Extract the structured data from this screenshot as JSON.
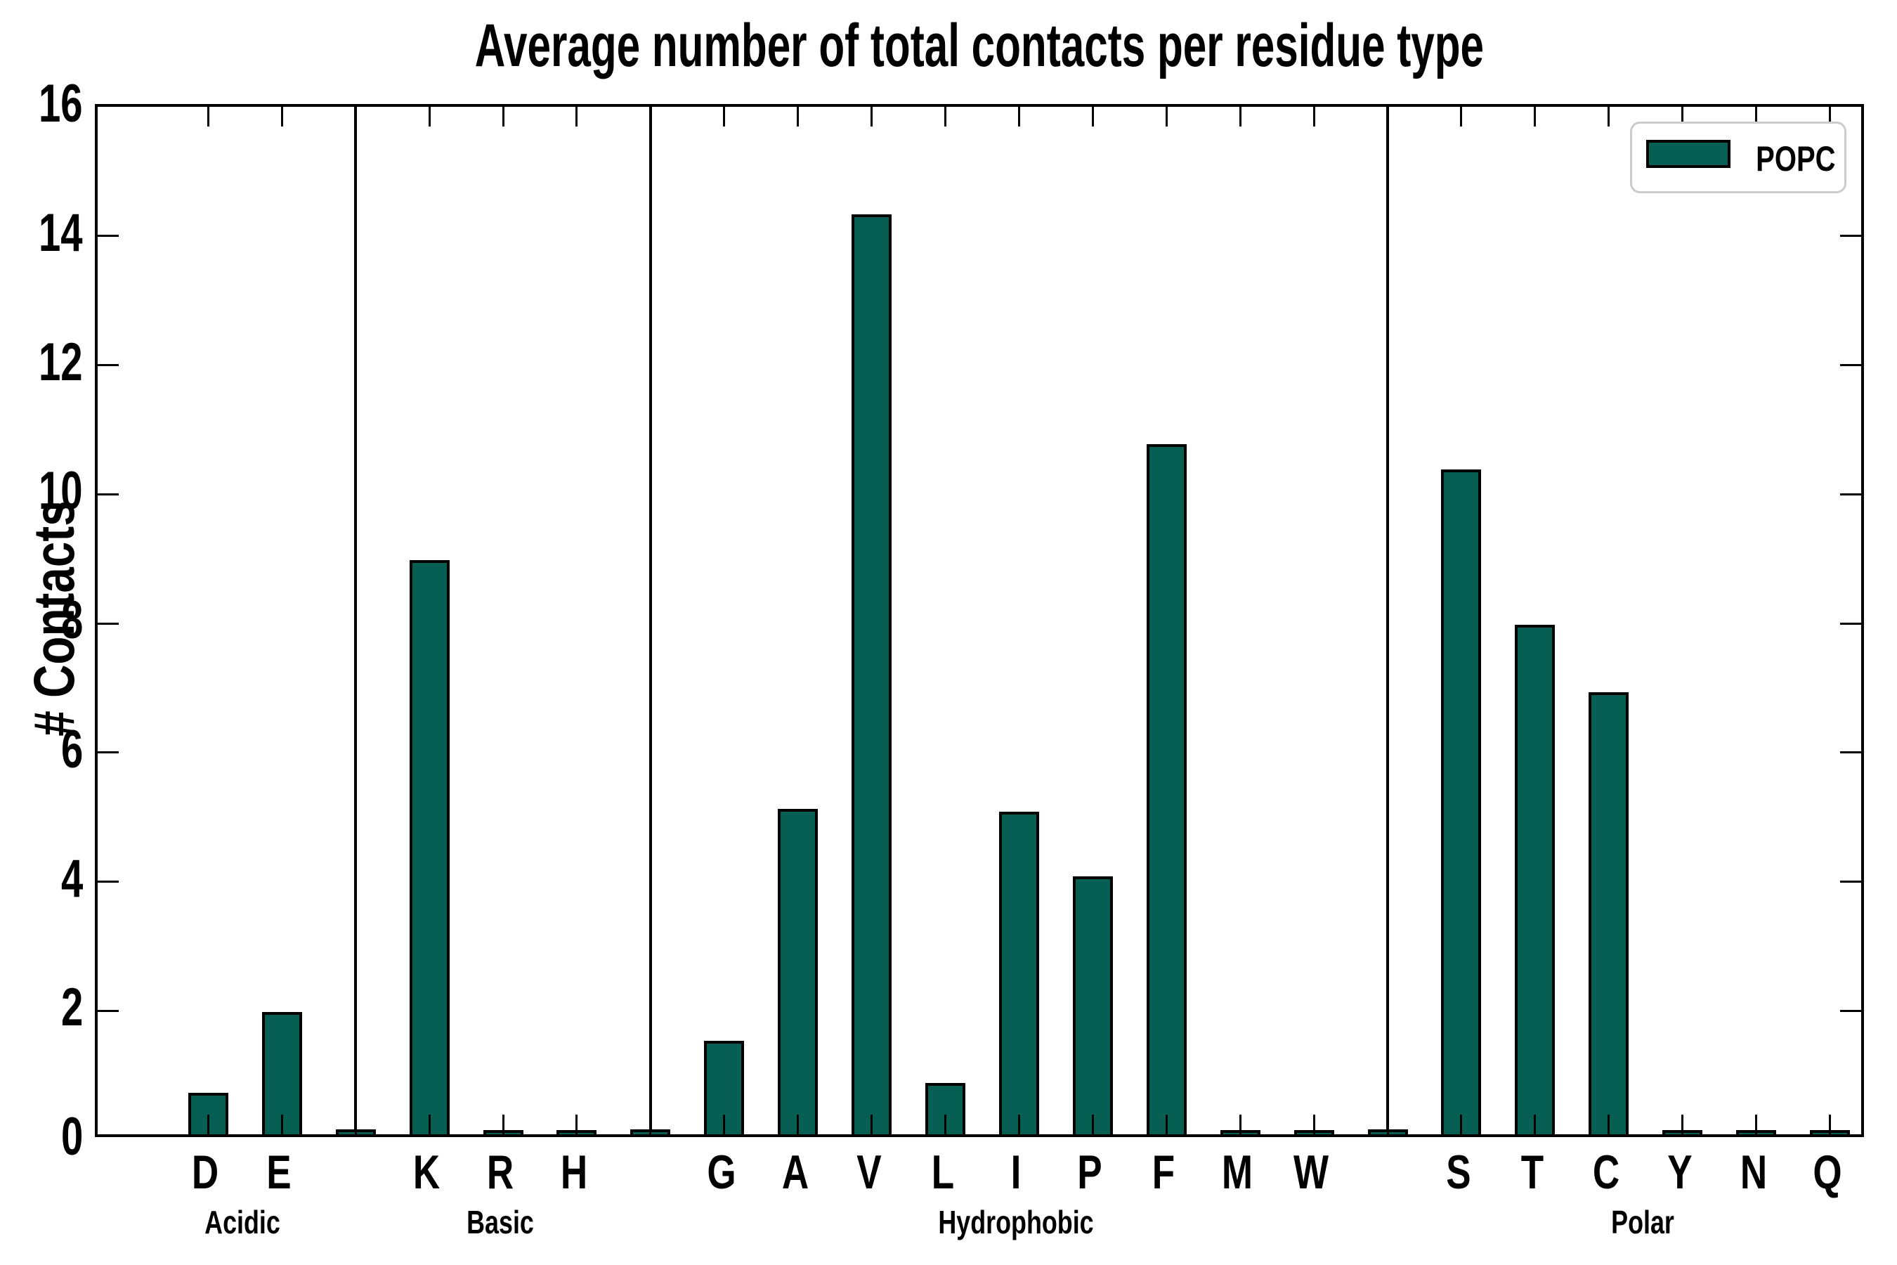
{
  "page": {
    "background": "#ffffff"
  },
  "chart_data": {
    "type": "bar",
    "title": "Average number of total contacts per residue type",
    "ylabel": "# Contacts",
    "xlabel": "",
    "ylim": [
      0,
      16
    ],
    "ytick_step": 2,
    "grid": false,
    "legend_position": "upper right",
    "legend": [
      {
        "label": "POPC",
        "color": "#075E52"
      }
    ],
    "bar_edge_color": "#000000",
    "legend_border_color": "#cccccc",
    "group_divider_color": "#000000",
    "separator_value": 0.03,
    "groups": [
      {
        "label": "Acidic",
        "categories": [
          "D",
          "E"
        ],
        "values": [
          0.6,
          1.85
        ]
      },
      {
        "label": "Basic",
        "categories": [
          "K",
          "R",
          "H"
        ],
        "values": [
          8.85,
          0.02,
          0.02
        ]
      },
      {
        "label": "Hydrophobic",
        "categories": [
          "G",
          "A",
          "V",
          "L",
          "I",
          "P",
          "F",
          "M",
          "W"
        ],
        "values": [
          1.4,
          5.0,
          14.2,
          0.75,
          4.95,
          3.95,
          10.65,
          0.02,
          0.02
        ]
      },
      {
        "label": "Polar",
        "categories": [
          "S",
          "T",
          "C",
          "Y",
          "N",
          "Q"
        ],
        "values": [
          10.25,
          7.85,
          6.8,
          0.02,
          0.02,
          0.02
        ]
      }
    ]
  }
}
